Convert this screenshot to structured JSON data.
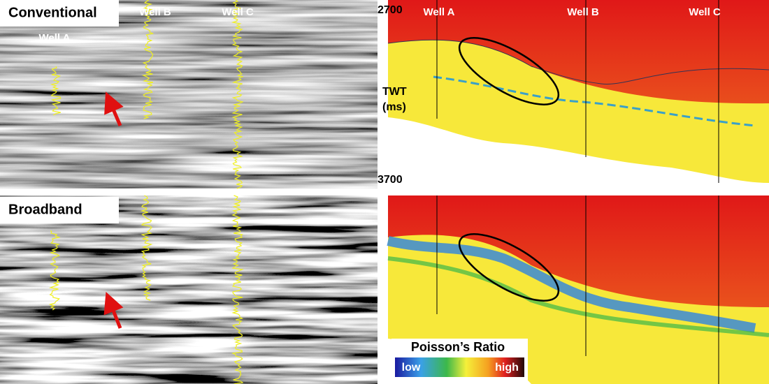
{
  "panels": [
    {
      "label": "Conventional",
      "wells": [
        "Well A",
        "Well B",
        "Well C"
      ]
    },
    {
      "wells": [
        "Well A",
        "Well B",
        "Well C"
      ]
    },
    {
      "label": "Broadband"
    }
  ],
  "time_axis": {
    "top": "2700",
    "label": [
      "TWT",
      "(ms)"
    ],
    "bottom": "3700"
  },
  "colorbar": {
    "title": "Poisson’s Ratio",
    "low": "low",
    "high": "high"
  }
}
